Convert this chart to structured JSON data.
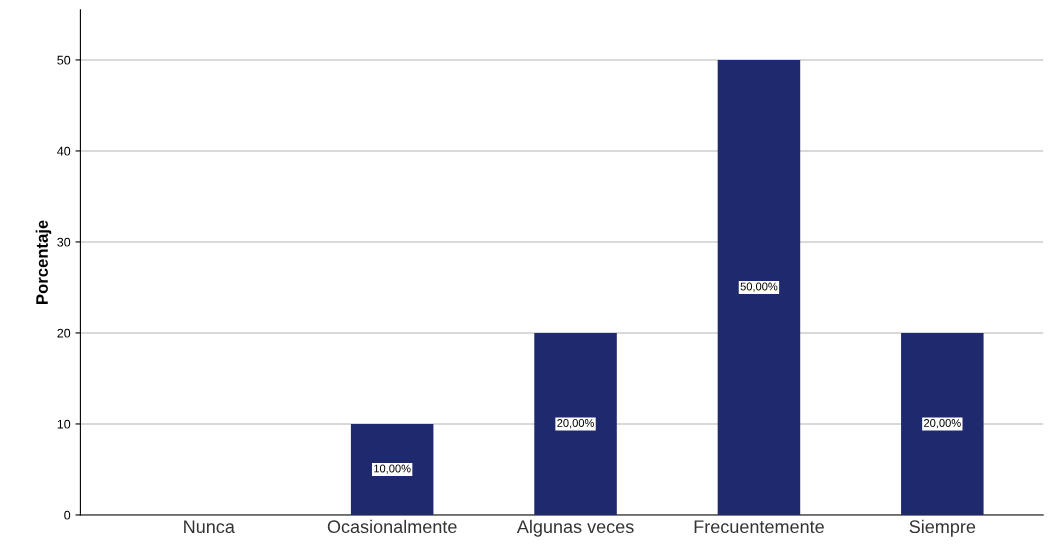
{
  "chart_data": {
    "type": "bar",
    "ylabel": "Porcentaje",
    "categories": [
      "Nunca",
      "Ocasionalmente",
      "Algunas veces",
      "Frecuentemente",
      "Siempre"
    ],
    "values": [
      0,
      10,
      20,
      50,
      20
    ],
    "value_labels": [
      null,
      "10,00%",
      "20,00%",
      "50,00%",
      "20,00%"
    ],
    "color": "#1f2a6e",
    "ylim": [
      0,
      55.5
    ],
    "yticks": [
      0,
      10,
      20,
      30,
      40,
      50
    ],
    "grid": "y"
  }
}
